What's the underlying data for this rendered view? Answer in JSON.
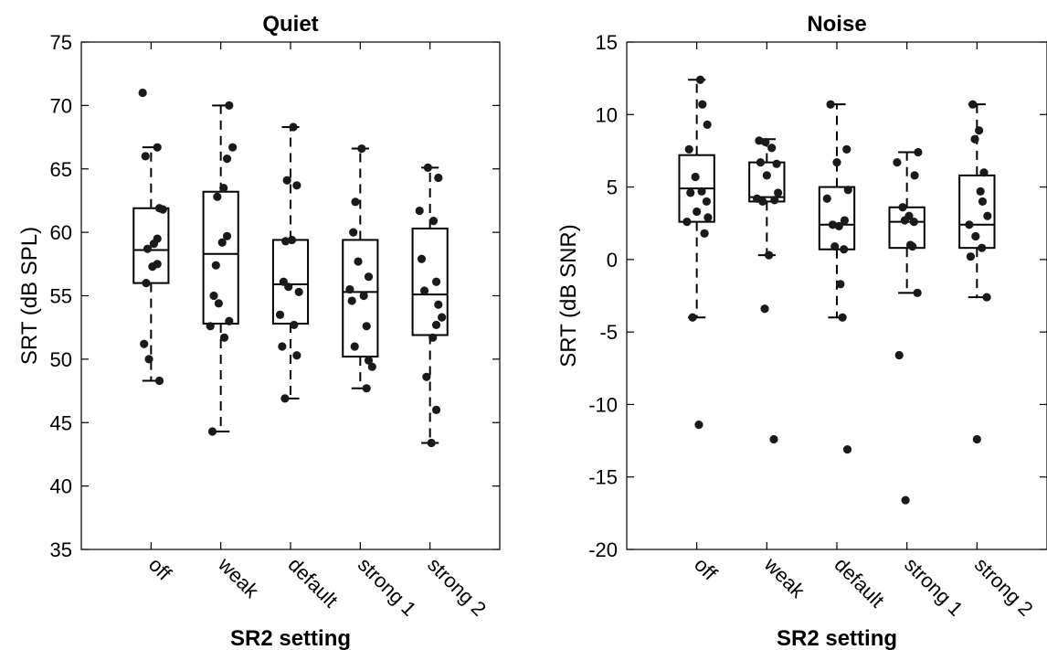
{
  "chart_data": [
    {
      "type": "box",
      "title": "Quiet",
      "xlabel": "SR2 setting",
      "ylabel": "SRT (dB SPL)",
      "ylim": [
        35,
        75
      ],
      "yticks": [
        35,
        40,
        45,
        50,
        55,
        60,
        65,
        70,
        75
      ],
      "categories": [
        "off",
        "weak",
        "default",
        "strong 1",
        "strong 2"
      ],
      "boxes": [
        {
          "q1": 56.0,
          "median": 58.6,
          "q3": 61.9,
          "whisker_low": 48.3,
          "whisker_high": 66.7,
          "outliers": [
            71.0
          ]
        },
        {
          "q1": 52.8,
          "median": 58.3,
          "q3": 63.2,
          "whisker_low": 44.3,
          "whisker_high": 70.0,
          "outliers": []
        },
        {
          "q1": 52.8,
          "median": 55.9,
          "q3": 59.4,
          "whisker_low": 46.9,
          "whisker_high": 68.3,
          "outliers": []
        },
        {
          "q1": 50.2,
          "median": 55.3,
          "q3": 59.4,
          "whisker_low": 47.7,
          "whisker_high": 66.6,
          "outliers": []
        },
        {
          "q1": 51.9,
          "median": 55.1,
          "q3": 60.3,
          "whisker_low": 43.4,
          "whisker_high": 65.1,
          "outliers": []
        }
      ],
      "points": [
        [
          71.0,
          66.7,
          66.0,
          61.9,
          61.8,
          59.5,
          59.1,
          58.7,
          57.5,
          57.3,
          56.0,
          51.2,
          50.0,
          48.3
        ],
        [
          70.0,
          66.7,
          65.8,
          63.5,
          62.8,
          59.7,
          59.2,
          57.4,
          55.0,
          54.4,
          53.0,
          52.6,
          51.7,
          44.3
        ],
        [
          68.3,
          64.1,
          63.7,
          59.4,
          59.3,
          56.1,
          55.7,
          55.3,
          53.5,
          52.7,
          51.0,
          50.3,
          46.9
        ],
        [
          66.6,
          62.4,
          60.0,
          57.7,
          56.5,
          55.5,
          55.0,
          54.6,
          52.6,
          51.0,
          49.9,
          49.4,
          47.7
        ],
        [
          65.1,
          64.3,
          61.7,
          60.9,
          57.9,
          56.1,
          55.4,
          54.3,
          53.3,
          52.7,
          51.7,
          48.6,
          46.0,
          43.4
        ]
      ]
    },
    {
      "type": "box",
      "title": "Noise",
      "xlabel": "SR2 setting",
      "ylabel": "SRT (dB SNR)",
      "ylim": [
        -20,
        15
      ],
      "yticks": [
        -20,
        -15,
        -10,
        -5,
        0,
        5,
        10,
        15
      ],
      "categories": [
        "off",
        "weak",
        "default",
        "strong 1",
        "strong 2"
      ],
      "boxes": [
        {
          "q1": 2.6,
          "median": 4.9,
          "q3": 7.2,
          "whisker_low": -4.0,
          "whisker_high": 12.4,
          "outliers": [
            -11.4
          ]
        },
        {
          "q1": 4.0,
          "median": 4.3,
          "q3": 6.7,
          "whisker_low": 0.3,
          "whisker_high": 8.3,
          "outliers": [
            -3.4,
            -12.4
          ]
        },
        {
          "q1": 0.7,
          "median": 2.4,
          "q3": 5.0,
          "whisker_low": -4.0,
          "whisker_high": 10.7,
          "outliers": [
            -13.1
          ]
        },
        {
          "q1": 0.8,
          "median": 2.6,
          "q3": 3.6,
          "whisker_low": -2.3,
          "whisker_high": 7.4,
          "outliers": [
            -6.6,
            -16.6
          ]
        },
        {
          "q1": 0.8,
          "median": 2.4,
          "q3": 5.8,
          "whisker_low": -2.6,
          "whisker_high": 10.7,
          "outliers": [
            -12.4
          ]
        }
      ],
      "points": [
        [
          12.4,
          10.7,
          9.3,
          7.6,
          5.7,
          4.7,
          4.6,
          4.0,
          3.3,
          2.9,
          2.6,
          1.8,
          -4.0,
          -11.4
        ],
        [
          8.2,
          8.1,
          7.7,
          6.7,
          6.6,
          5.8,
          4.6,
          4.2,
          4.1,
          4.0,
          0.3,
          -3.4,
          -12.4
        ],
        [
          10.7,
          7.6,
          6.7,
          4.8,
          4.2,
          2.7,
          2.4,
          2.3,
          0.9,
          0.7,
          -1.7,
          -4.0,
          -13.1
        ],
        [
          7.4,
          6.7,
          5.8,
          3.6,
          3.0,
          2.7,
          2.6,
          1.0,
          0.9,
          -2.3,
          -6.6,
          -16.6
        ],
        [
          10.7,
          8.9,
          8.3,
          6.0,
          4.7,
          4.0,
          3.0,
          2.4,
          1.6,
          0.8,
          0.2,
          -2.6,
          -12.4
        ]
      ]
    }
  ]
}
